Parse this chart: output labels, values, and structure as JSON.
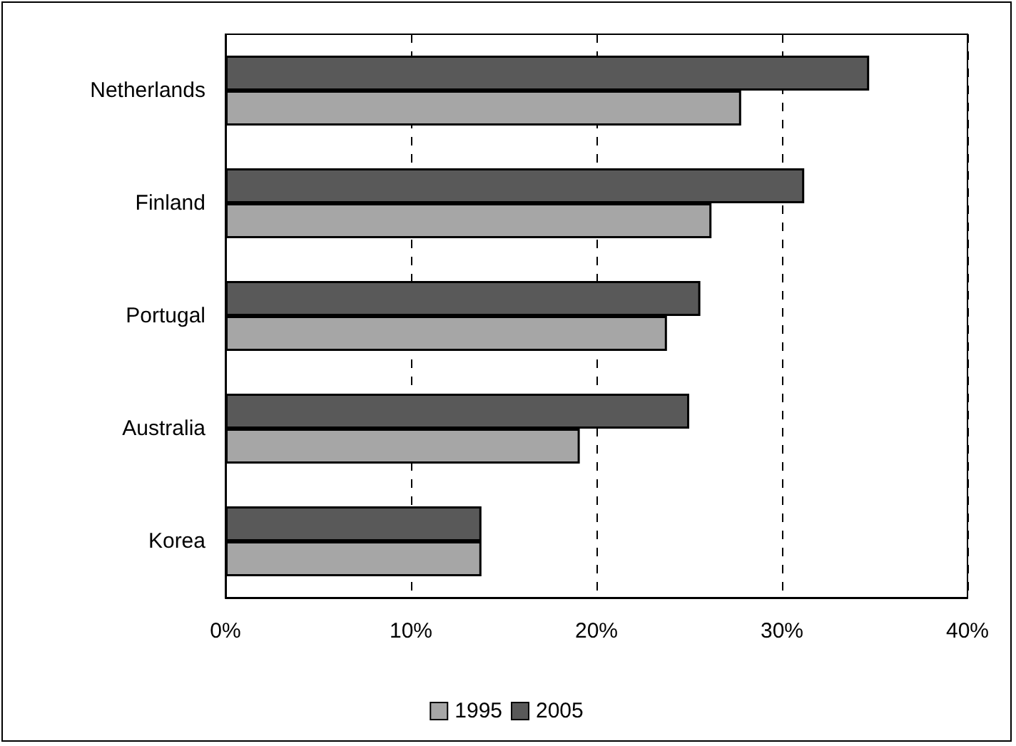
{
  "chart_data": {
    "type": "bar",
    "orientation": "horizontal",
    "categories": [
      "Netherlands",
      "Finland",
      "Portugal",
      "Australia",
      "Korea"
    ],
    "series": [
      {
        "name": "1995",
        "color": "#a6a6a6",
        "values": [
          27.8,
          26.2,
          23.8,
          19.1,
          13.8
        ]
      },
      {
        "name": "2005",
        "color": "#595959",
        "values": [
          34.7,
          31.2,
          25.6,
          25.0,
          13.8
        ]
      }
    ],
    "xlim": [
      0,
      40
    ],
    "xticks": [
      {
        "value": 0,
        "label": "0%"
      },
      {
        "value": 10,
        "label": "10%"
      },
      {
        "value": 20,
        "label": "20%"
      },
      {
        "value": 30,
        "label": "30%"
      },
      {
        "value": 40,
        "label": "40%"
      }
    ],
    "grid": "x",
    "legend": "bottom"
  }
}
